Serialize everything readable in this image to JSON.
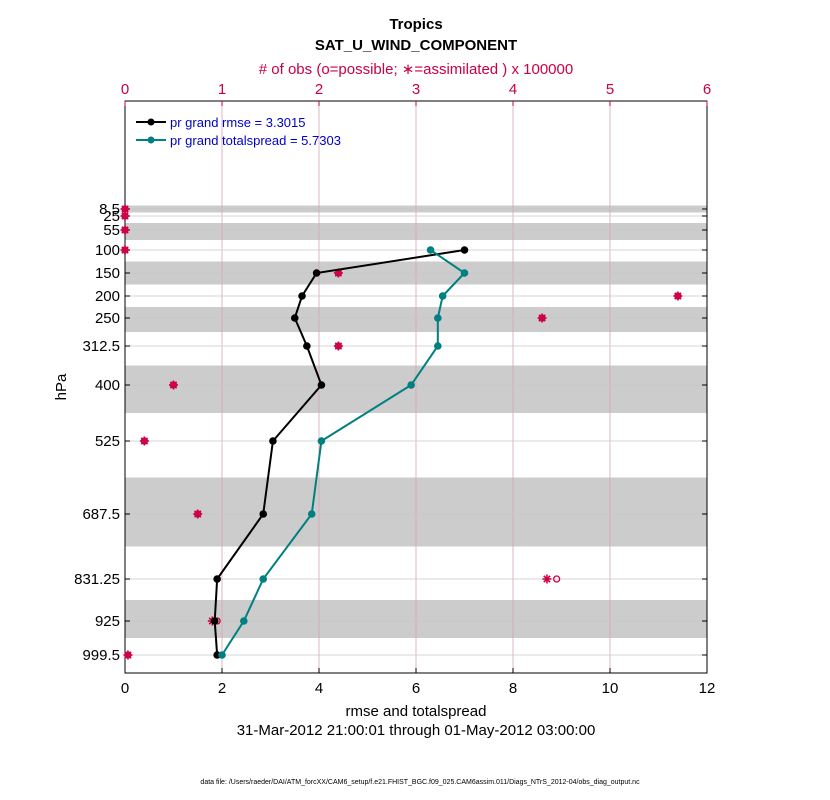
{
  "chart_data": {
    "type": "line",
    "title": "Tropics",
    "subtitle": "SAT_U_WIND_COMPONENT",
    "top_axis_label": "# of obs (o=possible; ∗=assimilated ) x 100000",
    "xlabel": "rmse and totalspread",
    "ylabel": "hPa",
    "date_range": "31-Mar-2012 21:00:01 through 01-May-2012 03:00:00",
    "footer": "data file: /Users/raeder/DAI/ATM_forcXX/CAM6_setup/f.e21.FHIST_BGC.f09_025.CAM6assim.011/Diags_NTrS_2012-04/obs_diag_output.nc",
    "xlim": [
      0,
      12
    ],
    "x_ticks": [
      "0",
      "2",
      "4",
      "6",
      "8",
      "10",
      "12"
    ],
    "top_xlim": [
      0,
      6
    ],
    "top_ticks": [
      "0",
      "1",
      "2",
      "3",
      "4",
      "5",
      "6"
    ],
    "levels": [
      8.5,
      25,
      55,
      100,
      150,
      200,
      250,
      312.5,
      400,
      525,
      687.5,
      831.25,
      925,
      999.5
    ],
    "level_labels": [
      "8.5",
      "25",
      "55",
      "100",
      "150",
      "200",
      "250",
      "312.5",
      "400",
      "525",
      "687.5",
      "831.25",
      "925",
      "999.5"
    ],
    "y_order": "pressure decreasing upward",
    "grid": true,
    "shaded_bands": true,
    "legend_position": "top-left",
    "legend": [
      {
        "label": "pr grand rmse = 3.3015",
        "color": "#000000"
      },
      {
        "label": "pr grand totalspread = 5.7303",
        "color": "#008080"
      }
    ],
    "series": [
      {
        "name": "pr grand rmse = 3.3015",
        "color": "#000000",
        "points": [
          [
            7.0,
            100
          ],
          [
            3.95,
            150
          ],
          [
            3.65,
            200
          ],
          [
            3.5,
            250
          ],
          [
            3.75,
            312.5
          ],
          [
            4.05,
            400
          ],
          [
            3.05,
            525
          ],
          [
            2.85,
            687.5
          ],
          [
            1.9,
            831.25
          ],
          [
            1.85,
            925
          ],
          [
            1.9,
            999.5
          ]
        ]
      },
      {
        "name": "pr grand totalspread = 5.7303",
        "color": "#008080",
        "points": [
          [
            6.3,
            100
          ],
          [
            7.0,
            150
          ],
          [
            6.55,
            200
          ],
          [
            6.45,
            250
          ],
          [
            6.45,
            312.5
          ],
          [
            5.9,
            400
          ],
          [
            4.05,
            525
          ],
          [
            3.85,
            687.5
          ],
          [
            2.85,
            831.25
          ],
          [
            2.45,
            925
          ],
          [
            2.0,
            999.5
          ]
        ]
      }
    ],
    "obs_count": {
      "color": "#cc0044",
      "possible": [
        [
          0.0,
          8.5
        ],
        [
          0.0,
          25
        ],
        [
          0.0,
          55
        ],
        [
          0.0,
          100
        ],
        [
          2.2,
          150
        ],
        [
          5.7,
          200
        ],
        [
          4.3,
          250
        ],
        [
          2.2,
          312.5
        ],
        [
          0.5,
          400
        ],
        [
          0.2,
          525
        ],
        [
          0.75,
          687.5
        ],
        [
          4.45,
          831.25
        ],
        [
          0.95,
          925
        ],
        [
          0.03,
          999.5
        ]
      ],
      "assimilated": [
        [
          0.0,
          8.5
        ],
        [
          0.0,
          25
        ],
        [
          0.0,
          55
        ],
        [
          0.0,
          100
        ],
        [
          2.2,
          150
        ],
        [
          5.7,
          200
        ],
        [
          4.3,
          250
        ],
        [
          2.2,
          312.5
        ],
        [
          0.5,
          400
        ],
        [
          0.2,
          525
        ],
        [
          0.75,
          687.5
        ],
        [
          4.35,
          831.25
        ],
        [
          0.9,
          925
        ],
        [
          0.03,
          999.5
        ]
      ]
    }
  }
}
